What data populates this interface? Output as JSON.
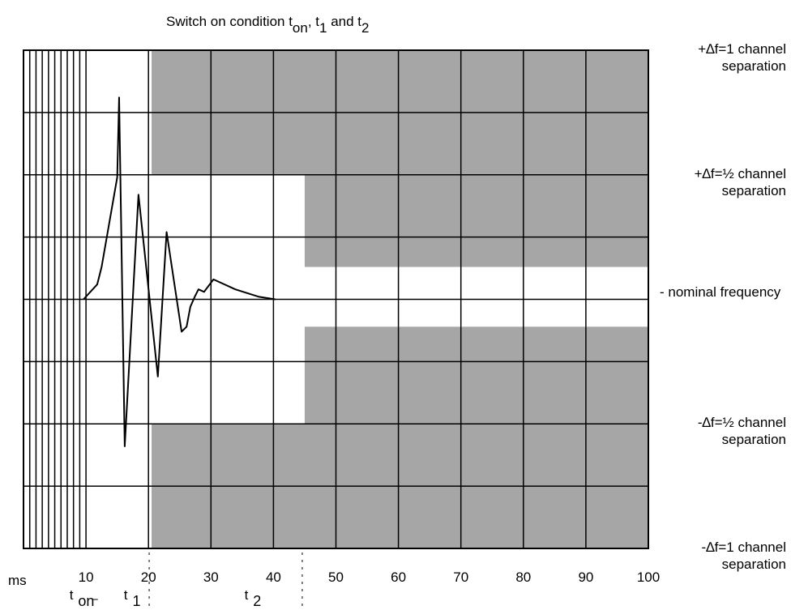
{
  "chart_data": {
    "type": "line",
    "title_parts": [
      "Switch on condition t",
      "on",
      ", t",
      "1",
      " and t",
      "2"
    ],
    "x_unit_label": "ms",
    "bottom_labels": [
      {
        "x": 4.5,
        "main": "t",
        "sub": "on"
      },
      {
        "x": 13.2,
        "main": "t",
        "sub": "1"
      },
      {
        "x": 32.5,
        "main": "t",
        "sub": "2"
      }
    ],
    "markers": [
      20.5,
      45
    ],
    "xlim": [
      0,
      100
    ],
    "ylim": [
      -1,
      1
    ],
    "xticks": [
      10,
      20,
      30,
      40,
      50,
      60,
      70,
      80,
      90,
      100
    ],
    "xgrid": [
      0,
      1,
      2,
      3,
      4,
      5,
      6,
      7,
      8,
      9,
      10,
      20,
      30,
      40,
      50,
      60,
      70,
      80,
      90,
      100
    ],
    "ygrid": [
      -1,
      -0.75,
      -0.5,
      -0.25,
      0,
      0.25,
      0.5,
      0.75,
      1
    ],
    "yticks": [
      {
        "value": 1,
        "label": "+∆f=1 channel separation"
      },
      {
        "value": 0.5,
        "label": "+∆f=½ channel separation"
      },
      {
        "value": 0,
        "label": "- nominal frequency"
      },
      {
        "value": -0.5,
        "label": "-∆f=½ channel separation"
      },
      {
        "value": -1,
        "label": "-∆f=1 channel separation"
      }
    ],
    "regions_color": "#a6a6a6",
    "regions": [
      {
        "x": [
          20.5,
          100
        ],
        "y": [
          0.5,
          1
        ]
      },
      {
        "x": [
          20.5,
          100
        ],
        "y": [
          -1,
          -0.5
        ]
      },
      {
        "x": [
          45,
          100
        ],
        "y": [
          0.13,
          0.5
        ]
      },
      {
        "x": [
          45,
          100
        ],
        "y": [
          -0.5,
          -0.11
        ]
      }
    ],
    "series": [
      {
        "color": "#000000",
        "x": [
          9.6,
          11.8,
          12.5,
          15.0,
          15.3,
          16.2,
          18.4,
          21.5,
          22.9,
          25.3,
          26.1,
          26.7,
          27.4,
          28.0,
          28.9,
          30.4,
          33.9,
          37.7,
          40.3
        ],
        "values": [
          0,
          0.06,
          0.13,
          0.49,
          0.81,
          -0.59,
          0.42,
          -0.31,
          0.27,
          -0.13,
          -0.11,
          -0.03,
          0.01,
          0.04,
          0.03,
          0.08,
          0.04,
          0.01,
          0
        ]
      }
    ]
  }
}
